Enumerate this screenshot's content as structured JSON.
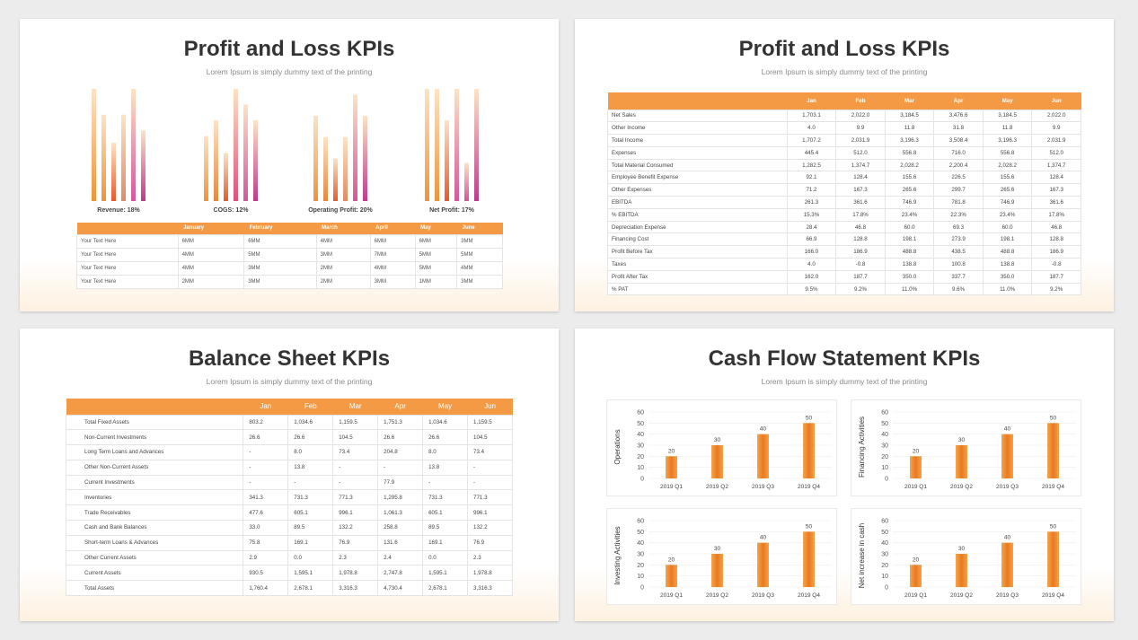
{
  "slides": {
    "pl_chart": {
      "title": "Profit and Loss KPIs",
      "subtitle": "Lorem Ipsum is simply dummy text of the printing",
      "table_headers": [
        "",
        "January",
        "February",
        "March",
        "April",
        "May",
        "June"
      ],
      "table_rows": [
        [
          "Your Text Here",
          "6MM",
          "6MM",
          "4MM",
          "6MM",
          "6MM",
          "3MM"
        ],
        [
          "Your Text Here",
          "4MM",
          "5MM",
          "3MM",
          "7MM",
          "5MM",
          "5MM"
        ],
        [
          "Your Text Here",
          "4MM",
          "3MM",
          "2MM",
          "4MM",
          "5MM",
          "4MM"
        ],
        [
          "Your Text Here",
          "2MM",
          "3MM",
          "2MM",
          "3MM",
          "1MM",
          "3MM"
        ]
      ]
    },
    "pl_table": {
      "title": "Profit and Loss KPIs",
      "subtitle": "Lorem Ipsum is simply dummy text of the printing",
      "headers": [
        "",
        "Jan",
        "Feb",
        "Mar",
        "Apr",
        "May",
        "Jun"
      ],
      "rows": [
        [
          "Net Sales",
          "1,703.1",
          "2,022.0",
          "3,184.5",
          "3,476.6",
          "3,184.5",
          "2,022.0"
        ],
        [
          "Other Income",
          "4.0",
          "9.9",
          "11.8",
          "31.8",
          "11.8",
          "9.9"
        ],
        [
          "Total Income",
          "1,707.2",
          "2,031.9",
          "3,196.3",
          "3,508.4",
          "3,196.3",
          "2,031.9"
        ],
        [
          "Expenses",
          "445.4",
          "512.0",
          "556.8",
          "716.0",
          "556.8",
          "512.0"
        ],
        [
          "Total Material Consumed",
          "1,282.5",
          "1,374.7",
          "2,028.2",
          "2,200.4",
          "2,028.2",
          "1,374.7"
        ],
        [
          "Employee Benefit Expense",
          "92.1",
          "128.4",
          "155.6",
          "226.5",
          "155.6",
          "128.4"
        ],
        [
          "Other Expenses",
          "71.2",
          "167.3",
          "265.6",
          "299.7",
          "265.6",
          "167.3"
        ],
        [
          "EBITDA",
          "261.3",
          "361.6",
          "746.9",
          "781.8",
          "746.9",
          "361.6"
        ],
        [
          "% EBITDA",
          "15.3%",
          "17.8%",
          "23.4%",
          "22.3%",
          "23.4%",
          "17.8%"
        ],
        [
          "Depreciation Expense",
          "28.4",
          "46.8",
          "60.0",
          "69.3",
          "60.0",
          "46.8"
        ],
        [
          "Financing Cost",
          "66.9",
          "128.8",
          "198.1",
          "273.9",
          "198.1",
          "128.8"
        ],
        [
          "Profit Before Tax",
          "166.0",
          "186.9",
          "488.8",
          "438.5",
          "488.8",
          "186.9"
        ],
        [
          "Taxes",
          "4.0",
          "-0.8",
          "138.8",
          "100.8",
          "138.8",
          "-0.8"
        ],
        [
          "Profit After Tax",
          "162.0",
          "187.7",
          "350.0",
          "337.7",
          "350.0",
          "187.7"
        ],
        [
          "% PAT",
          "9.5%",
          "9.2%",
          "11.0%",
          "9.6%",
          "11.0%",
          "9.2%"
        ]
      ]
    },
    "balance": {
      "title": "Balance Sheet KPIs",
      "subtitle": "Lorem Ipsum is simply dummy text of the printing",
      "headers": [
        "",
        "Jan",
        "Feb",
        "Mar",
        "Apr",
        "May",
        "Jun"
      ],
      "rows": [
        [
          "Total Fixed Assets",
          "803.2",
          "1,034.6",
          "1,159.5",
          "1,751.3",
          "1,034.6",
          "1,159.5"
        ],
        [
          "Non-Current Investments",
          "26.6",
          "26.6",
          "104.5",
          "26.6",
          "26.6",
          "104.5"
        ],
        [
          "Long Term Loans and Advances",
          "-",
          "8.0",
          "73.4",
          "204.8",
          "8.0",
          "73.4"
        ],
        [
          "Other Non-Current Assets",
          "-",
          "13.8",
          "-",
          "-",
          "13.8",
          "-"
        ],
        [
          "Current Investments",
          "-",
          "-",
          "-",
          "77.9",
          "-",
          "-"
        ],
        [
          "Inventories",
          "341.3",
          "731.3",
          "771.3",
          "1,295.8",
          "731.3",
          "771.3"
        ],
        [
          "Trade Receivables",
          "477.6",
          "605.1",
          "996.1",
          "1,061.3",
          "605.1",
          "996.1"
        ],
        [
          "Cash and Bank Balances",
          "33.0",
          "89.5",
          "132.2",
          "258.8",
          "89.5",
          "132.2"
        ],
        [
          "Short-term Loans & Advances",
          "75.8",
          "169.1",
          "76.9",
          "131.6",
          "169.1",
          "76.9"
        ],
        [
          "Other Current Assets",
          "2.9",
          "0.0",
          "2.3",
          "2.4",
          "0.0",
          "2.3"
        ],
        [
          "Current Assets",
          "930.5",
          "1,595.1",
          "1,978.8",
          "2,747.8",
          "1,595.1",
          "1,978.8"
        ],
        [
          "Total Assets",
          "1,760.4",
          "2,678.1",
          "3,316.3",
          "4,730.4",
          "2,678.1",
          "3,316.3"
        ]
      ]
    },
    "cashflow": {
      "title": "Cash Flow Statement KPIs",
      "subtitle": "Lorem Ipsum is simply dummy text of the printing"
    }
  },
  "chart_data": [
    {
      "type": "bar",
      "title": "",
      "xlabel": "Revenue:  18%",
      "ylabel": "",
      "categories": [
        "",
        "",
        "",
        "",
        "",
        ""
      ],
      "values": [
        100,
        77,
        52,
        77,
        100,
        63
      ],
      "colors": [
        "#ee9438",
        "#ee9438",
        "#e55a2c",
        "#e28b63",
        "#d5559b",
        "#c0398c"
      ]
    },
    {
      "type": "bar",
      "title": "",
      "xlabel": "COGS:  12%",
      "ylabel": "",
      "categories": [
        "",
        "",
        "",
        "",
        "",
        ""
      ],
      "values": [
        58,
        72,
        43,
        100,
        86,
        72
      ],
      "colors": [
        "#ee9438",
        "#e7863c",
        "#e55a2c",
        "#e04f7a",
        "#d5559b",
        "#c0398c"
      ]
    },
    {
      "type": "bar",
      "title": "",
      "xlabel": "Operating Profit:  20%",
      "ylabel": "",
      "categories": [
        "",
        "",
        "",
        "",
        "",
        ""
      ],
      "values": [
        76,
        57,
        38,
        57,
        95,
        76
      ],
      "colors": [
        "#ee9438",
        "#e7863c",
        "#e55a2c",
        "#e28b63",
        "#d5559b",
        "#c0398c"
      ]
    },
    {
      "type": "bar",
      "title": "",
      "xlabel": "Net Profit:  17%",
      "ylabel": "",
      "categories": [
        "",
        "",
        "",
        "",
        "",
        ""
      ],
      "values": [
        100,
        100,
        72,
        100,
        34,
        100
      ],
      "colors": [
        "#ee9438",
        "#ee9438",
        "#e55a2c",
        "#d5559b",
        "#d5559b",
        "#c0398c"
      ]
    },
    {
      "type": "bar",
      "title": "",
      "xlabel": "",
      "ylabel": "Operations",
      "categories": [
        "2019  Q1",
        "2019 Q2",
        "2019 Q3",
        "2019 Q4"
      ],
      "values": [
        20,
        30,
        40,
        50
      ],
      "ylim": [
        0,
        60
      ],
      "yticks": [
        0,
        10,
        20,
        30,
        40,
        50,
        60
      ]
    },
    {
      "type": "bar",
      "title": "",
      "xlabel": "",
      "ylabel": "Financing Activities",
      "categories": [
        "2019  Q1",
        "2019 Q2",
        "2019 Q3",
        "2019 Q4"
      ],
      "values": [
        20,
        30,
        40,
        50
      ],
      "ylim": [
        0,
        60
      ],
      "yticks": [
        0,
        10,
        20,
        30,
        40,
        50,
        60
      ]
    },
    {
      "type": "bar",
      "title": "",
      "xlabel": "",
      "ylabel": "Investing Activities",
      "categories": [
        "2019  Q1",
        "2019 Q2",
        "2019 Q3",
        "2019 Q4"
      ],
      "values": [
        20,
        30,
        40,
        50
      ],
      "ylim": [
        0,
        60
      ],
      "yticks": [
        0,
        10,
        20,
        30,
        40,
        50,
        60
      ]
    },
    {
      "type": "bar",
      "title": "",
      "xlabel": "",
      "ylabel": "Net increase in cash",
      "categories": [
        "2019  Q1",
        "2019 Q2",
        "2019 Q3",
        "2019 Q4"
      ],
      "values": [
        20,
        30,
        40,
        50
      ],
      "ylim": [
        0,
        60
      ],
      "yticks": [
        0,
        10,
        20,
        30,
        40,
        50,
        60
      ]
    }
  ],
  "colors": {
    "accent": "#f49a45",
    "bar_orange": "#ee8a2a"
  }
}
